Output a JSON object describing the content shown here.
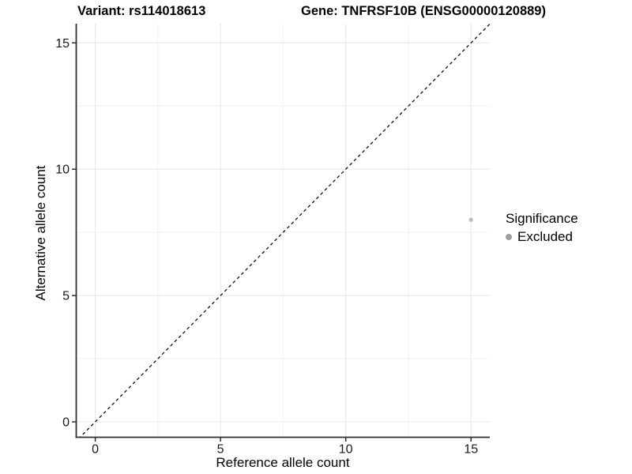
{
  "header": {
    "variant_title": "Variant: rs114018613",
    "gene_title": "Gene: TNFRSF10B (ENSG00000120889)"
  },
  "chart_data": {
    "type": "scatter",
    "title_left": "Variant: rs114018613",
    "title_right": "Gene: TNFRSF10B (ENSG00000120889)",
    "xlabel": "Reference allele count",
    "ylabel": "Alternative allele count",
    "xlim": [
      -0.76,
      15.75
    ],
    "ylim": [
      -0.61,
      15.76
    ],
    "x_major_ticks": [
      0,
      5,
      10,
      15
    ],
    "y_major_ticks": [
      0,
      5,
      10,
      15
    ],
    "x_minor_ticks": [
      2.5,
      7.5,
      12.5
    ],
    "y_minor_ticks": [
      2.5,
      7.5,
      12.5
    ],
    "grid": true,
    "points": [
      {
        "x": 15,
        "y": 8,
        "significance": "Excluded"
      }
    ],
    "identity_line": {
      "type": "dashed",
      "slope": 1,
      "intercept": 0,
      "from": [
        -1,
        -1
      ],
      "to": [
        16.5,
        16.5
      ]
    },
    "legend": {
      "title": "Significance",
      "position": "right",
      "items": [
        {
          "label": "Excluded",
          "color": "#9f9f9f"
        }
      ]
    },
    "colors": {
      "background": "#ffffff",
      "point": "#bdbdbd",
      "legend_dot": "#9f9f9f",
      "grid_major": "#e8e8e8",
      "grid_minor": "#f0f0f0",
      "axis_line": "#2e2e2e",
      "tick_label": "#1a1a1a",
      "identity_line": "#111111"
    }
  }
}
